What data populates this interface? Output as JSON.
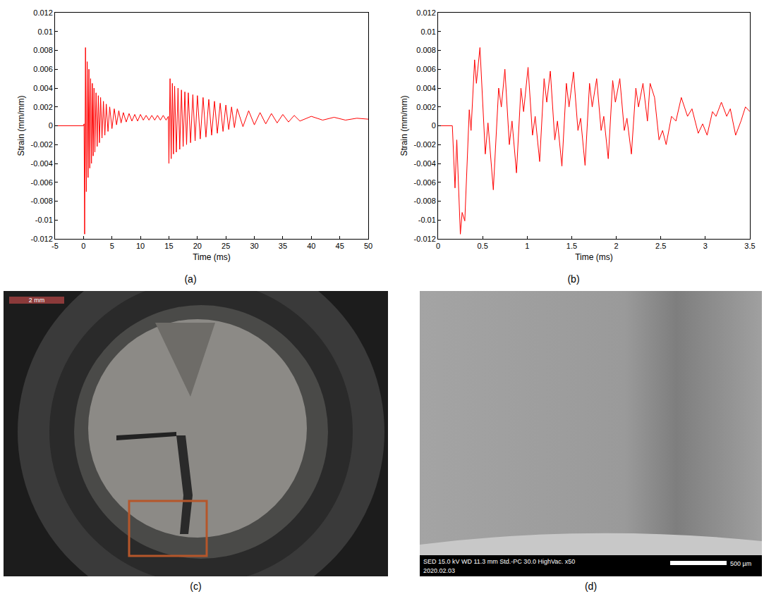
{
  "chart_data": [
    {
      "label": "(a)",
      "type": "line",
      "x_label": "Time (ms)",
      "y_label": "Strain (mm/mm)",
      "color": "#ff0000",
      "grid": false,
      "xlim": [
        -5,
        50
      ],
      "xticks": [
        -5,
        0,
        5,
        10,
        15,
        20,
        25,
        30,
        35,
        40,
        45,
        50
      ],
      "ylim": [
        -0.012,
        0.012
      ],
      "yticks": [
        -0.012,
        -0.01,
        -0.008,
        -0.006,
        -0.004,
        -0.002,
        0,
        0.002,
        0.004,
        0.006,
        0.008,
        0.01,
        0.012
      ],
      "x": [
        -5,
        0,
        0.1,
        0.2,
        0.35,
        0.5,
        0.65,
        0.8,
        0.95,
        1.1,
        1.25,
        1.4,
        1.55,
        1.7,
        1.85,
        2.0,
        2.2,
        2.4,
        2.6,
        2.8,
        3.0,
        3.25,
        3.5,
        3.75,
        4.0,
        4.3,
        4.6,
        5.0,
        5.4,
        5.8,
        6.2,
        6.6,
        7.0,
        7.5,
        8.0,
        8.5,
        9.0,
        9.5,
        10,
        10.5,
        11,
        11.5,
        12,
        12.5,
        13,
        13.5,
        14,
        14.5,
        14.9,
        15.0,
        15.2,
        15.4,
        15.6,
        15.8,
        16.0,
        16.3,
        16.6,
        16.9,
        17.2,
        17.5,
        17.8,
        18.1,
        18.4,
        18.8,
        19.2,
        19.6,
        20.0,
        20.5,
        21.0,
        21.5,
        22.0,
        22.5,
        23.0,
        23.5,
        24.0,
        24.5,
        25.0,
        25.5,
        26.0,
        26.5,
        27.0,
        28.0,
        29.0,
        30.0,
        31,
        32,
        33,
        34,
        35,
        36,
        37,
        38,
        40,
        42,
        44,
        46,
        48,
        50
      ],
      "values": [
        0,
        0,
        0.0002,
        -0.0115,
        0.0083,
        -0.007,
        0.0068,
        -0.0055,
        0.006,
        -0.0045,
        0.005,
        -0.004,
        0.0045,
        -0.0032,
        0.004,
        -0.0028,
        0.0035,
        -0.0022,
        0.0032,
        -0.0018,
        0.003,
        -0.0013,
        0.0026,
        -0.001,
        0.0023,
        -0.0006,
        0.002,
        -0.0003,
        0.0018,
        0.0001,
        0.0016,
        0.0003,
        0.0014,
        0.0004,
        0.0013,
        0.0005,
        0.0012,
        0.0005,
        0.0012,
        0.0006,
        0.0011,
        0.0006,
        0.0011,
        0.0006,
        0.0011,
        0.0006,
        0.0011,
        0.0006,
        0.001,
        -0.004,
        0.005,
        -0.0035,
        0.0045,
        -0.003,
        0.0042,
        -0.0028,
        0.004,
        -0.0025,
        0.0038,
        -0.0022,
        0.0036,
        -0.002,
        0.0035,
        -0.0018,
        0.0033,
        -0.0016,
        0.0032,
        -0.0014,
        0.003,
        -0.0012,
        0.0028,
        -0.001,
        0.0026,
        -0.0008,
        0.0024,
        -0.0006,
        0.0022,
        -0.0004,
        0.002,
        -0.0002,
        0.0018,
        -0.0001,
        0.0016,
        0.0001,
        0.0014,
        0.0002,
        0.0013,
        0.0003,
        0.0012,
        0.0004,
        0.0011,
        0.0005,
        0.001,
        0.0006,
        0.0009,
        0.0006,
        0.0008,
        0.0007
      ]
    },
    {
      "label": "(b)",
      "type": "line",
      "x_label": "Time (ms)",
      "y_label": "Strain (mm/mm)",
      "color": "#ff0000",
      "grid": false,
      "xlim": [
        0,
        3.5
      ],
      "xticks": [
        0,
        0.5,
        1,
        1.5,
        2,
        2.5,
        3,
        3.5
      ],
      "ylim": [
        -0.012,
        0.012
      ],
      "yticks": [
        -0.012,
        -0.01,
        -0.008,
        -0.006,
        -0.004,
        -0.002,
        0,
        0.002,
        0.004,
        0.006,
        0.008,
        0.01,
        0.012
      ],
      "x": [
        0,
        0.16,
        0.19,
        0.21,
        0.25,
        0.27,
        0.3,
        0.35,
        0.37,
        0.41,
        0.43,
        0.47,
        0.53,
        0.56,
        0.62,
        0.68,
        0.71,
        0.75,
        0.8,
        0.83,
        0.88,
        0.93,
        0.96,
        1.01,
        1.06,
        1.09,
        1.14,
        1.19,
        1.22,
        1.26,
        1.31,
        1.34,
        1.39,
        1.44,
        1.47,
        1.52,
        1.57,
        1.6,
        1.65,
        1.7,
        1.73,
        1.78,
        1.83,
        1.86,
        1.91,
        1.96,
        1.99,
        2.04,
        2.09,
        2.12,
        2.17,
        2.22,
        2.25,
        2.3,
        2.35,
        2.38,
        2.43,
        2.48,
        2.52,
        2.56,
        2.62,
        2.67,
        2.73,
        2.8,
        2.85,
        2.92,
        2.97,
        3.02,
        3.08,
        3.12,
        3.18,
        3.24,
        3.28,
        3.34,
        3.4,
        3.45,
        3.5
      ],
      "values": [
        0,
        0,
        -0.0066,
        -0.0015,
        -0.0115,
        -0.0092,
        -0.0101,
        0.0017,
        -0.0005,
        0.007,
        0.0045,
        0.0083,
        -0.003,
        0.0003,
        -0.0068,
        0.004,
        0.002,
        0.006,
        -0.002,
        0.0005,
        -0.005,
        0.004,
        0.0015,
        0.0062,
        -0.001,
        0.001,
        -0.0038,
        0.005,
        0.0025,
        0.0058,
        -0.0015,
        0.0005,
        -0.0043,
        0.0045,
        0.002,
        0.0057,
        -0.0005,
        0.0008,
        -0.0042,
        0.0045,
        0.002,
        0.005,
        -0.0005,
        0.001,
        -0.0035,
        0.0048,
        0.0025,
        0.005,
        -0.0005,
        0.0008,
        -0.003,
        0.004,
        0.002,
        0.0045,
        0.0005,
        0.0045,
        0.003,
        -0.0015,
        -0.0005,
        -0.002,
        0.001,
        0.0005,
        0.003,
        0.001,
        0.0018,
        -0.0008,
        0.0002,
        -0.001,
        0.0015,
        0.001,
        0.0025,
        0.001,
        0.0018,
        -0.001,
        0.0005,
        0.002,
        0.0015
      ]
    }
  ],
  "images": [
    {
      "label": "(c)",
      "scale_bar": "2 mm"
    },
    {
      "label": "(d)",
      "info": "SED 15.0 kV WD 11.3 mm Std.-PC 30.0 HighVac. x50",
      "date": "2020.02.03",
      "scale_bar": "500 µm"
    }
  ]
}
